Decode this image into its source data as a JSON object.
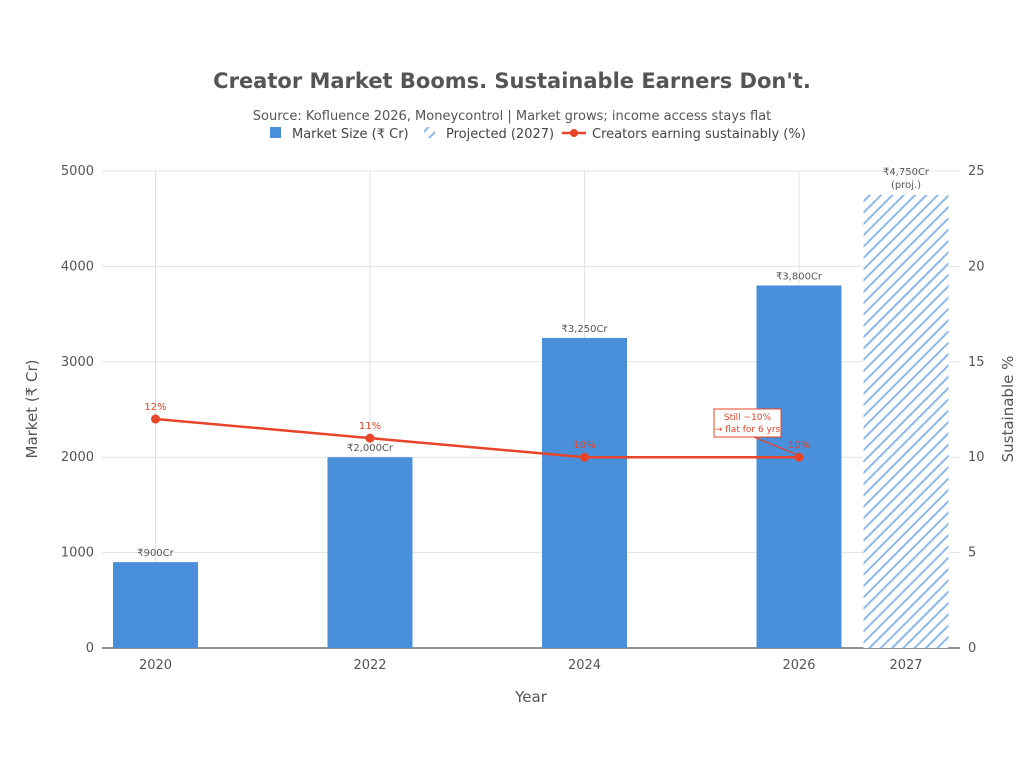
{
  "chart_data": {
    "type": "bar",
    "title": "Creator Market Booms. Sustainable Earners Don't.",
    "subtitle": "Source: Kofluence 2026, Moneycontrol | Market grows; income access stays flat",
    "xlabel": "Year",
    "ylabel": "Market (₹ Cr)",
    "y2label": "Sustainable %",
    "categories": [
      "2020",
      "2022",
      "2024",
      "2026",
      "2027"
    ],
    "ylim": [
      0,
      5000
    ],
    "y_ticks": [
      0,
      1000,
      2000,
      3000,
      4000,
      5000
    ],
    "y2lim": [
      0,
      25
    ],
    "y2_ticks": [
      0,
      5,
      10,
      15,
      20,
      25
    ],
    "grid": true,
    "legend_position": "top",
    "series": [
      {
        "name": "Market Size (₹ Cr)",
        "kind": "bar",
        "color": "#4a8fd9",
        "x": [
          "2020",
          "2022",
          "2024",
          "2026"
        ],
        "values": [
          900,
          2000,
          3250,
          3800
        ],
        "labels": [
          "₹900Cr",
          "₹2,000Cr",
          "₹3,250Cr",
          "₹3,800Cr"
        ]
      },
      {
        "name": "Projected (2027)",
        "kind": "bar-hatched",
        "color": "#8fb8ec",
        "x": [
          "2027"
        ],
        "values": [
          4750
        ],
        "labels": [
          "₹4,750Cr",
          "(proj.)"
        ]
      },
      {
        "name": "Creators earning sustainably (%)",
        "kind": "line",
        "axis": "right",
        "color": "#e8442a",
        "x": [
          "2020",
          "2022",
          "2024",
          "2026"
        ],
        "values": [
          12,
          11,
          10,
          10
        ],
        "labels": [
          "12%",
          "11%",
          "10%",
          "10%"
        ]
      }
    ],
    "annotation": {
      "lines": [
        "Still ~10%",
        "→ flat for 6 yrs"
      ],
      "points_to": "2026"
    }
  }
}
